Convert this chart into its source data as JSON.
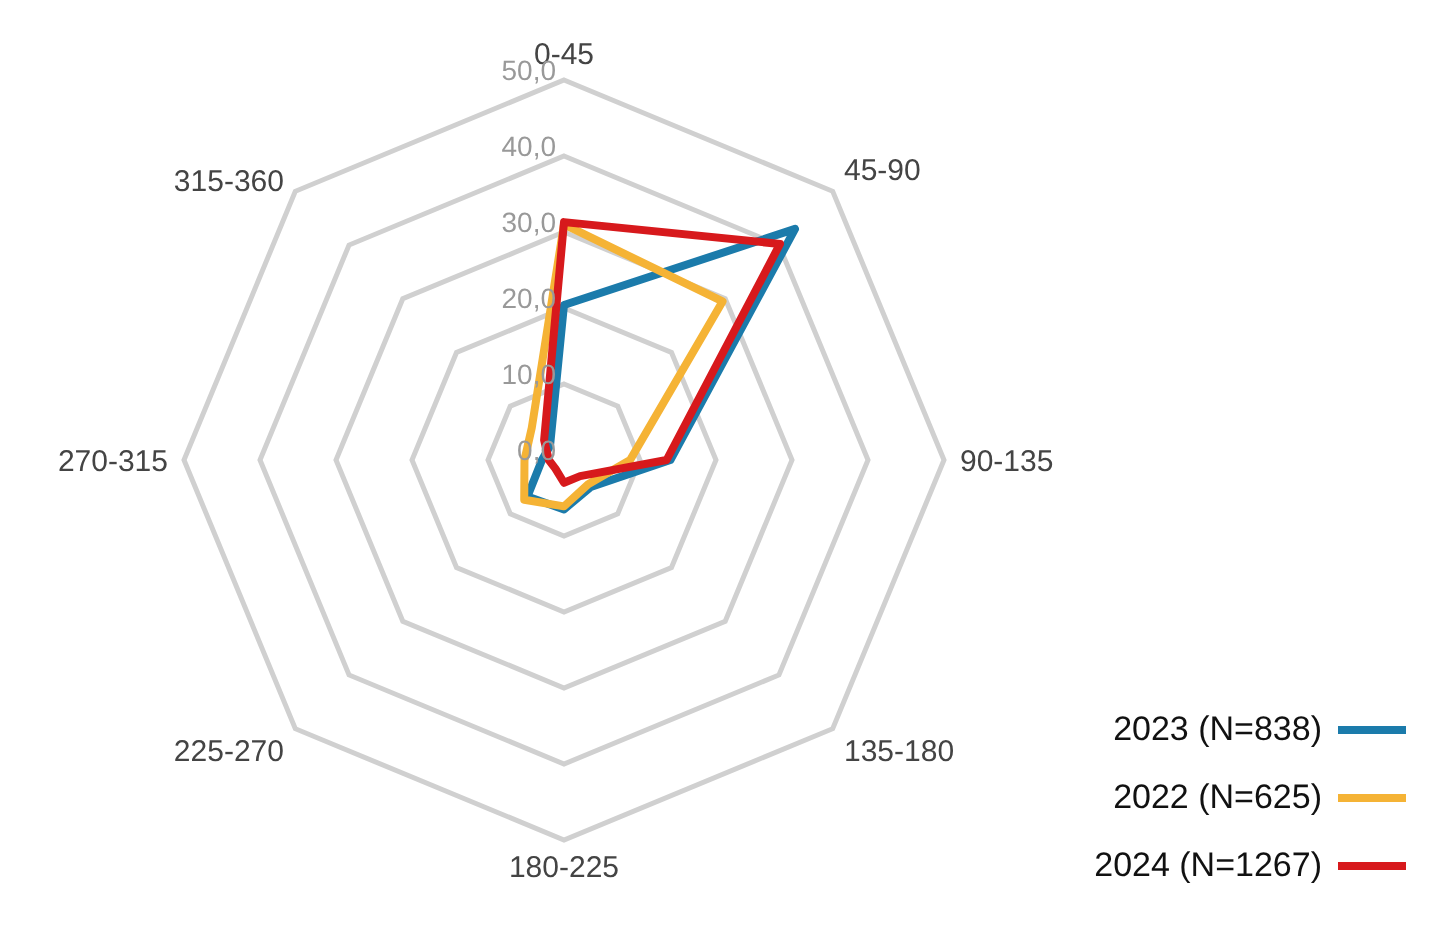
{
  "chart_data": {
    "type": "radar",
    "categories": [
      "0-45",
      "45-90",
      "90-135",
      "135-180",
      "180-225",
      "225-270",
      "270-315",
      "315-360"
    ],
    "ylim": [
      0,
      50
    ],
    "yticks": [
      {
        "value": 0,
        "label": "0,0"
      },
      {
        "value": 10,
        "label": "10,0"
      },
      {
        "value": 20,
        "label": "20,0"
      },
      {
        "value": 30,
        "label": "30,0"
      },
      {
        "value": 40,
        "label": "40,0"
      },
      {
        "value": 50,
        "label": "50,0"
      }
    ],
    "grid": true,
    "legend": "bottom right",
    "line_style": "solid",
    "marker": "none",
    "series": [
      {
        "name": "2023 (N=838)",
        "color": "#1b7bab",
        "values": [
          20.4,
          43,
          14,
          5,
          6.5,
          6.8,
          2.9,
          2.6
        ]
      },
      {
        "name": "2022 (N=625)",
        "color": "#f5b335",
        "values": [
          31,
          29.5,
          8.7,
          4.5,
          6.1,
          7.4,
          5.2,
          6
        ]
      },
      {
        "name": "2024 (N=1267)",
        "color": "#d7191c",
        "values": [
          31.3,
          40.2,
          13.5,
          3,
          3,
          1.6,
          2,
          3.7
        ]
      }
    ]
  }
}
